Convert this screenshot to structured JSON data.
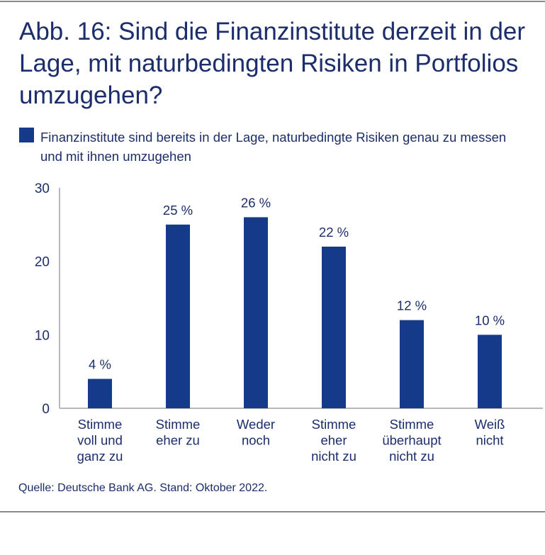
{
  "title": "Abb. 16: Sind die Finanzinstitute derzeit in der Lage, mit naturbedingten Risiken in Portfolios umzugehen?",
  "source": "Quelle: Deutsche Bank AG. Stand: Oktober 2022.",
  "colors": {
    "bar": "#153a8a",
    "text": "#1b2d6b",
    "axis": "#a0a0a0"
  },
  "chart_data": {
    "type": "bar",
    "title": "Abb. 16: Sind die Finanzinstitute derzeit in der Lage, mit naturbedingten Risiken in Portfolios umzugehen?",
    "legend": "Finanzinstitute sind bereits in der Lage, naturbedingte Risiken genau zu messen und mit ihnen umzugehen",
    "legend_position": "top-left",
    "categories": [
      [
        "Stimme",
        "voll und",
        "ganz zu"
      ],
      [
        "Stimme",
        "eher zu"
      ],
      [
        "Weder",
        "noch"
      ],
      [
        "Stimme",
        "eher",
        "nicht zu"
      ],
      [
        "Stimme",
        "überhaupt",
        "nicht zu"
      ],
      [
        "Weiß",
        "nicht"
      ]
    ],
    "series": [
      {
        "name": "Finanzinstitute sind bereits in der Lage, naturbedingte Risiken genau zu messen und mit ihnen umzugehen",
        "values": [
          4,
          25,
          26,
          22,
          12,
          10
        ]
      }
    ],
    "data_labels": [
      "4 %",
      "25 %",
      "26 %",
      "22 %",
      "12 %",
      "10 %"
    ],
    "yticks": [
      "0",
      "10",
      "20",
      "30"
    ],
    "ylim": [
      0,
      30
    ],
    "grid": false,
    "xlabel": "",
    "ylabel": ""
  }
}
